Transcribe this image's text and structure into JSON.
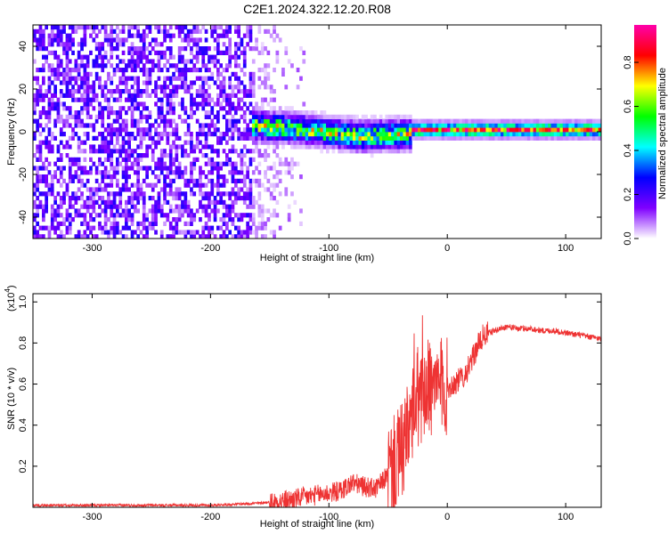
{
  "title": "C2E1.2024.322.12.20.R08",
  "chart_data": [
    {
      "type": "heatmap",
      "xlabel": "Height of straight line (km)",
      "ylabel": "Frequency (Hz)",
      "xlim": [
        -350,
        130
      ],
      "ylim": [
        -50,
        50
      ],
      "xticks": [
        -300,
        -200,
        -100,
        0,
        100
      ],
      "yticks": [
        -40,
        -20,
        0,
        20,
        40
      ],
      "colorbar": {
        "label": "Normalized spectral amplitude",
        "range": [
          0,
          0.97
        ],
        "ticks": [
          0.0,
          0.2,
          0.4,
          0.6,
          0.8
        ],
        "colormap": [
          "#ffffff",
          "#7f00ff",
          "#0000ff",
          "#00ffff",
          "#00ff00",
          "#ffff00",
          "#ff0000",
          "#ff00aa"
        ]
      },
      "regions": [
        {
          "x_range": [
            -350,
            -165
          ],
          "description": "broadband noise",
          "amplitude": [
            0.05,
            0.25
          ]
        },
        {
          "x_range": [
            -165,
            -120
          ],
          "description": "sparse noise",
          "amplitude": [
            0.02,
            0.1
          ]
        },
        {
          "x_range": [
            -165,
            -30
          ],
          "description": "signal band",
          "freq_center": [
            2,
            0,
            -3,
            -2
          ],
          "amplitude": [
            0.3,
            0.8
          ]
        },
        {
          "x_range": [
            -30,
            130
          ],
          "description": "narrow signal",
          "freq_center": 0,
          "amplitude": [
            0.6,
            0.97
          ]
        }
      ]
    },
    {
      "type": "line",
      "xlabel": "Height of straight line (km)",
      "ylabel": "SNR (10 * v/v)",
      "yscale_label": "(x10",
      "yscale_exp": "4",
      "yscale_close": ")",
      "xlim": [
        -350,
        130
      ],
      "ylim": [
        0,
        1.04
      ],
      "xticks": [
        -300,
        -200,
        -100,
        0,
        100
      ],
      "yticks": [
        0.2,
        0.4,
        0.6,
        0.8,
        1.0
      ],
      "series": [
        {
          "color": "#ee3333",
          "x": [
            -350,
            -300,
            -250,
            -200,
            -160,
            -140,
            -120,
            -100,
            -90,
            -80,
            -70,
            -60,
            -50,
            -45,
            -40,
            -35,
            -30,
            -25,
            -20,
            -15,
            -10,
            -5,
            0,
            5,
            10,
            15,
            20,
            25,
            30,
            35,
            40,
            50,
            60,
            70,
            80,
            90,
            100,
            110,
            120,
            130
          ],
          "values": [
            0.01,
            0.01,
            0.01,
            0.01,
            0.02,
            0.03,
            0.05,
            0.07,
            0.08,
            0.12,
            0.1,
            0.09,
            0.16,
            0.2,
            0.25,
            0.32,
            0.42,
            0.5,
            0.58,
            0.58,
            0.55,
            0.6,
            0.58,
            0.6,
            0.62,
            0.65,
            0.7,
            0.78,
            0.83,
            0.85,
            0.86,
            0.88,
            0.87,
            0.87,
            0.86,
            0.86,
            0.85,
            0.84,
            0.83,
            0.82
          ]
        }
      ]
    }
  ]
}
